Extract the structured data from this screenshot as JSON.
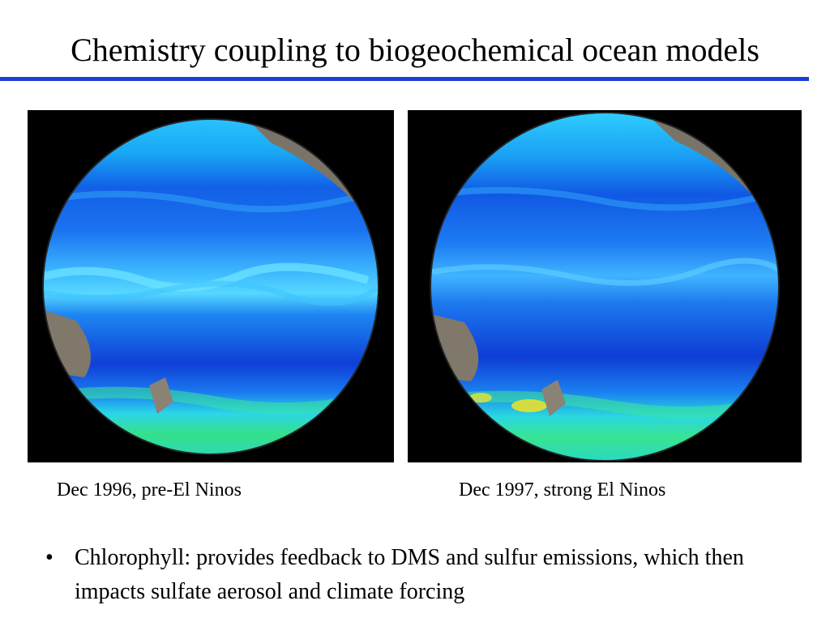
{
  "slide": {
    "title": "Chemistry coupling to biogeochemical ocean models",
    "accent_color": "#1a3fd6",
    "images": [
      {
        "caption": "Dec 1996, pre-El Ninos",
        "icon": "pacific-chlorophyll-globe-icon"
      },
      {
        "caption": "Dec 1997, strong El Ninos",
        "icon": "pacific-chlorophyll-globe-icon"
      }
    ],
    "bullets": [
      {
        "marker": "•",
        "text": "Chlorophyll: provides feedback to DMS and sulfur emissions, which then impacts sulfate aerosol and climate forcing"
      }
    ]
  }
}
